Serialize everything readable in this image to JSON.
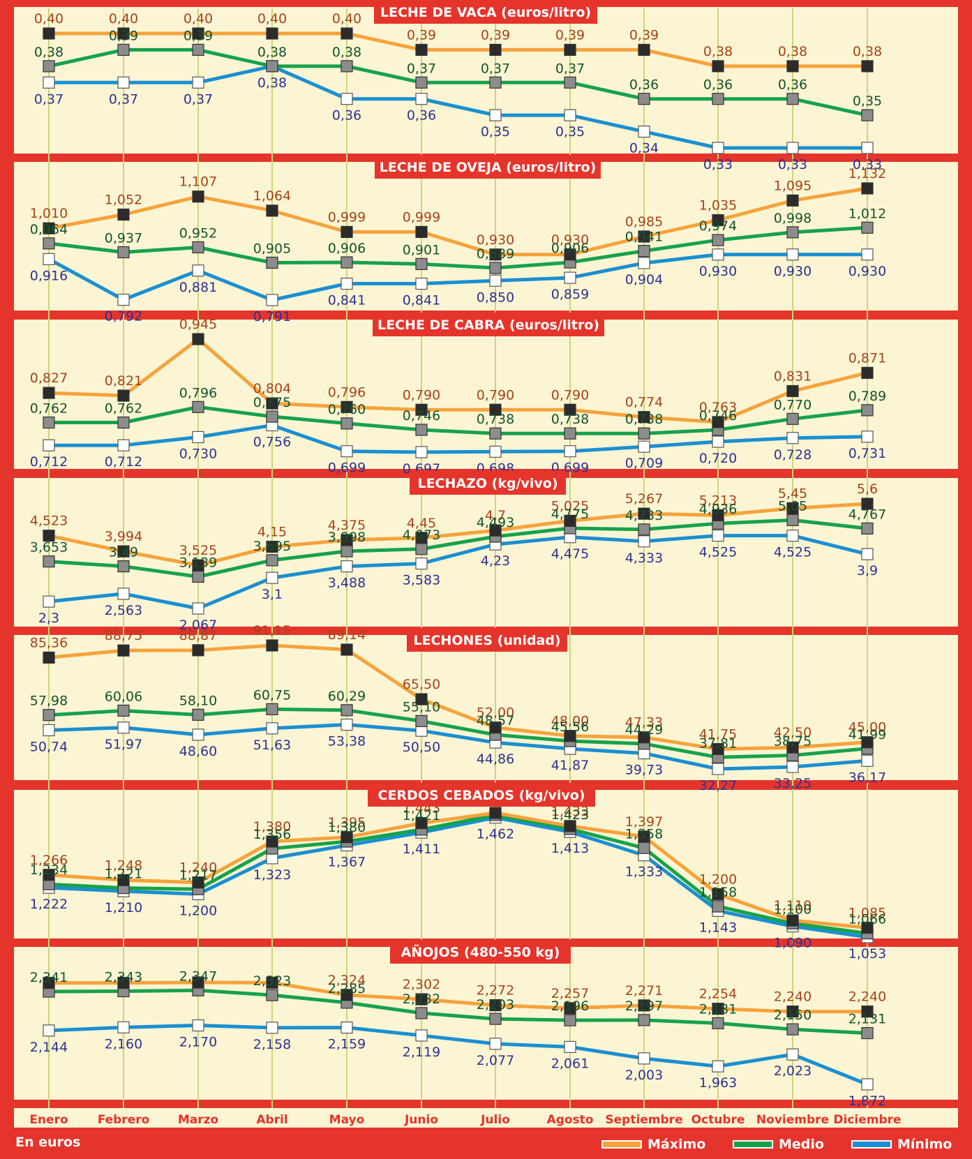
{
  "colors": {
    "background": "#e5342b",
    "panel": "#fbf5d3",
    "guide": "#c9d77a",
    "max": "#f6a33c",
    "mid": "#17a24b",
    "min": "#1b8fd1",
    "max_label": "#a8421c",
    "mid_label": "#14532d",
    "min_label": "#2e3192"
  },
  "months": [
    "Enero",
    "Febrero",
    "Marzo",
    "Abril",
    "Mayo",
    "Junio",
    "Julio",
    "Agosto",
    "Septiembre",
    "Octubre",
    "Noviembre",
    "Diciembre"
  ],
  "footer": {
    "unit_note": "En euros"
  },
  "legend": [
    {
      "label": "Máximo",
      "color": "#f6a33c"
    },
    {
      "label": "Medio",
      "color": "#17a24b"
    },
    {
      "label": "Mínimo",
      "color": "#1b8fd1"
    }
  ],
  "chart_data": [
    {
      "type": "line",
      "title": "LECHE DE VACA (euros/litro)",
      "categories": [
        "Enero",
        "Febrero",
        "Marzo",
        "Abril",
        "Mayo",
        "Junio",
        "Julio",
        "Agosto",
        "Septiembre",
        "Octubre",
        "Noviembre",
        "Diciembre"
      ],
      "series": [
        {
          "name": "Máximo",
          "values": [
            0.4,
            0.4,
            0.4,
            0.4,
            0.4,
            0.39,
            0.39,
            0.39,
            0.39,
            0.38,
            0.38,
            0.38
          ],
          "labels": [
            "0,40",
            "0,40",
            "0,40",
            "0,40",
            "0,40",
            "0,39",
            "0,39",
            "0,39",
            "0,39",
            "0,38",
            "0,38",
            "0,38"
          ]
        },
        {
          "name": "Medio",
          "values": [
            0.38,
            0.39,
            0.39,
            0.38,
            0.38,
            0.37,
            0.37,
            0.37,
            0.36,
            0.36,
            0.36,
            0.35
          ],
          "labels": [
            "0,38",
            "0,39",
            "0,39",
            "0,38",
            "0,38",
            "0,37",
            "0,37",
            "0,37",
            "0,36",
            "0,36",
            "0,36",
            "0,35"
          ]
        },
        {
          "name": "Mínimo",
          "values": [
            0.37,
            0.37,
            0.37,
            0.38,
            0.36,
            0.36,
            0.35,
            0.35,
            0.34,
            0.33,
            0.33,
            0.33
          ],
          "labels": [
            "0,37",
            "0,37",
            "0,37",
            "0,38",
            "0,36",
            "0,36",
            "0,35",
            "0,35",
            "0,34",
            "0,33",
            "0,33",
            "0,33"
          ]
        }
      ]
    },
    {
      "type": "line",
      "title": "LECHE DE OVEJA (euros/litro)",
      "categories": [
        "Enero",
        "Febrero",
        "Marzo",
        "Abril",
        "Mayo",
        "Junio",
        "Julio",
        "Agosto",
        "Septiembre",
        "Octubre",
        "Noviembre",
        "Diciembre"
      ],
      "series": [
        {
          "name": "Máximo",
          "values": [
            1.01,
            1.052,
            1.107,
            1.064,
            0.999,
            0.999,
            0.93,
            0.93,
            0.985,
            1.035,
            1.095,
            1.132
          ],
          "labels": [
            "1,010",
            "1,052",
            "1,107",
            "1,064",
            "0,999",
            "0,999",
            "0,930",
            "0,930",
            "0,985",
            "1,035",
            "1,095",
            "1,132"
          ]
        },
        {
          "name": "Medio",
          "values": [
            0.964,
            0.937,
            0.952,
            0.905,
            0.906,
            0.901,
            0.889,
            0.906,
            0.941,
            0.974,
            0.998,
            1.012
          ],
          "labels": [
            "0,964",
            "0,937",
            "0,952",
            "0,905",
            "0,906",
            "0,901",
            "0,889",
            "0,906",
            "0,941",
            "0,974",
            "0,998",
            "1,012"
          ]
        },
        {
          "name": "Mínimo",
          "values": [
            0.916,
            0.792,
            0.881,
            0.791,
            0.841,
            0.841,
            0.85,
            0.859,
            0.904,
            0.93,
            0.93,
            0.93
          ],
          "labels": [
            "0,916",
            "0,792",
            "0,881",
            "0,791",
            "0,841",
            "0,841",
            "0,850",
            "0,859",
            "0,904",
            "0,930",
            "0,930",
            "0,930"
          ]
        }
      ]
    },
    {
      "type": "line",
      "title": "LECHE DE CABRA (euros/litro)",
      "categories": [
        "Enero",
        "Febrero",
        "Marzo",
        "Abril",
        "Mayo",
        "Junio",
        "Julio",
        "Agosto",
        "Septiembre",
        "Octubre",
        "Noviembre",
        "Diciembre"
      ],
      "series": [
        {
          "name": "Máximo",
          "values": [
            0.827,
            0.821,
            0.945,
            0.804,
            0.796,
            0.79,
            0.79,
            0.79,
            0.774,
            0.763,
            0.831,
            0.871
          ],
          "labels": [
            "0,827",
            "0,821",
            "0,945",
            "0,804",
            "0,796",
            "0,790",
            "0,790",
            "0,790",
            "0,774",
            "0,763",
            "0,831",
            "0,871"
          ]
        },
        {
          "name": "Medio",
          "values": [
            0.762,
            0.762,
            0.796,
            0.775,
            0.76,
            0.746,
            0.738,
            0.738,
            0.738,
            0.746,
            0.77,
            0.789
          ],
          "labels": [
            "0,762",
            "0,762",
            "0,796",
            "0,775",
            "0,760",
            "0,746",
            "0,738",
            "0,738",
            "0,738",
            "0,746",
            "0,770",
            "0,789"
          ]
        },
        {
          "name": "Mínimo",
          "values": [
            0.712,
            0.712,
            0.73,
            0.756,
            0.699,
            0.697,
            0.698,
            0.699,
            0.709,
            0.72,
            0.728,
            0.731
          ],
          "labels": [
            "0,712",
            "0,712",
            "0,730",
            "0,756",
            "0,699",
            "0,697",
            "0,698",
            "0,699",
            "0,709",
            "0,720",
            "0,728",
            "0,731"
          ]
        }
      ]
    },
    {
      "type": "line",
      "title": "LECHAZO (kg/vivo)",
      "categories": [
        "Enero",
        "Febrero",
        "Marzo",
        "Abril",
        "Mayo",
        "Junio",
        "Julio",
        "Agosto",
        "Septiembre",
        "Octubre",
        "Noviembre",
        "Diciembre"
      ],
      "series": [
        {
          "name": "Máximo",
          "values": [
            4.523,
            3.994,
            3.525,
            4.15,
            4.375,
            4.45,
            4.7,
            5.025,
            5.267,
            5.213,
            5.45,
            5.6
          ],
          "labels": [
            "4,523",
            "3,994",
            "3,525",
            "4,15",
            "4,375",
            "4,45",
            "4,7",
            "5,025",
            "5,267",
            "5,213",
            "5,45",
            "5,6"
          ]
        },
        {
          "name": "Medio",
          "values": [
            3.653,
            3.49,
            3.139,
            3.695,
            3.998,
            4.073,
            4.493,
            4.775,
            4.733,
            4.936,
            5.05,
            4.767
          ],
          "labels": [
            "3,653",
            "3,49",
            "3,139",
            "3,695",
            "3,998",
            "4,073",
            "4,493",
            "4,775",
            "4,733",
            "4,936",
            "5,05",
            "4,767"
          ]
        },
        {
          "name": "Mínimo",
          "values": [
            2.3,
            2.563,
            2.067,
            3.1,
            3.488,
            3.583,
            4.23,
            4.475,
            4.333,
            4.525,
            4.525,
            3.9
          ],
          "labels": [
            "2,3",
            "2,563",
            "2,067",
            "3,1",
            "3,488",
            "3,583",
            "4,23",
            "4,475",
            "4,333",
            "4,525",
            "4,525",
            "3,9"
          ]
        }
      ]
    },
    {
      "type": "line",
      "title": "LECHONES (unidad)",
      "categories": [
        "Enero",
        "Febrero",
        "Marzo",
        "Abril",
        "Mayo",
        "Junio",
        "Julio",
        "Agosto",
        "Septiembre",
        "Octubre",
        "Noviembre",
        "Diciembre"
      ],
      "series": [
        {
          "name": "Máximo",
          "values": [
            85.36,
            88.75,
            88.87,
            91.15,
            89.14,
            65.5,
            52.0,
            48.0,
            47.33,
            41.75,
            42.5,
            45.0
          ],
          "labels": [
            "85,36",
            "88,75",
            "88,87",
            "91,15",
            "89,14",
            "65,50",
            "52,00",
            "48,00",
            "47,33",
            "41,75",
            "42,50",
            "45,00"
          ]
        },
        {
          "name": "Medio",
          "values": [
            57.98,
            60.06,
            58.1,
            60.75,
            60.29,
            55.1,
            48.57,
            45.56,
            44.29,
            37.81,
            38.75,
            41.99
          ],
          "labels": [
            "57,98",
            "60,06",
            "58,10",
            "60,75",
            "60,29",
            "55,10",
            "48,57",
            "45,56",
            "44,29",
            "37,81",
            "38,75",
            "41,99"
          ]
        },
        {
          "name": "Mínimo",
          "values": [
            50.74,
            51.97,
            48.6,
            51.63,
            53.38,
            50.5,
            44.86,
            41.87,
            39.73,
            32.27,
            33.25,
            36.17
          ],
          "labels": [
            "50,74",
            "51,97",
            "48,60",
            "51,63",
            "53,38",
            "50,50",
            "44,86",
            "41,87",
            "39,73",
            "32,27",
            "33,25",
            "36,17"
          ]
        }
      ]
    },
    {
      "type": "line",
      "title": "CERDOS CEBADOS (kg/vivo)",
      "categories": [
        "Enero",
        "Febrero",
        "Marzo",
        "Abril",
        "Mayo",
        "Junio",
        "Julio",
        "Agosto",
        "Septiembre",
        "Octubre",
        "Noviembre",
        "Diciembre"
      ],
      "series": [
        {
          "name": "Máximo",
          "values": [
            1.266,
            1.248,
            1.24,
            1.38,
            1.395,
            1.443,
            1.478,
            1.433,
            1.397,
            1.2,
            1.11,
            1.085
          ],
          "labels": [
            "1,266",
            "1,248",
            "1,240",
            "1,380",
            "1,395",
            "1,443",
            "1,478",
            "1,433",
            "1,397",
            "1,200",
            "1,110",
            "1,085"
          ]
        },
        {
          "name": "Medio",
          "values": [
            1.234,
            1.221,
            1.217,
            1.356,
            1.38,
            1.421,
            1.471,
            1.423,
            1.358,
            1.158,
            1.1,
            1.066
          ],
          "labels": [
            "1,234",
            "1,221",
            "1,217",
            "1,356",
            "1,380",
            "1,421",
            "1,471",
            "1,423",
            "1,358",
            "1,158",
            "1,100",
            "1,066"
          ]
        },
        {
          "name": "Mínimo",
          "values": [
            1.222,
            1.21,
            1.2,
            1.323,
            1.367,
            1.411,
            1.462,
            1.413,
            1.333,
            1.143,
            1.09,
            1.053
          ],
          "labels": [
            "1,222",
            "1,210",
            "1,200",
            "1,323",
            "1,367",
            "1,411",
            "1,462",
            "1,413",
            "1,333",
            "1,143",
            "1,090",
            "1,053"
          ]
        }
      ]
    },
    {
      "type": "line",
      "title": "AÑOJOS (480-550 kg)",
      "categories": [
        "Enero",
        "Febrero",
        "Marzo",
        "Abril",
        "Mayo",
        "Junio",
        "Julio",
        "Agosto",
        "Septiembre",
        "Octubre",
        "Noviembre",
        "Diciembre"
      ],
      "series": [
        {
          "name": "Máximo",
          "values": [
            2.385,
            2.385,
            2.387,
            2.386,
            2.324,
            2.302,
            2.272,
            2.257,
            2.271,
            2.254,
            2.24,
            2.24
          ],
          "labels": [
            "",
            "",
            "",
            "",
            "2,324",
            "2,302",
            "2,272",
            "2,257",
            "2,271",
            "2,254",
            "2,240",
            "2,240"
          ]
        },
        {
          "name": "Medio",
          "values": [
            2.341,
            2.343,
            2.347,
            2.323,
            2.285,
            2.232,
            2.203,
            2.196,
            2.197,
            2.181,
            2.15,
            2.131
          ],
          "labels": [
            "2,341",
            "2,343",
            "2,347",
            "2,323",
            "2,285",
            "2,232",
            "2,203",
            "2,196",
            "2,197",
            "2,181",
            "2,150",
            "2,131"
          ]
        },
        {
          "name": "Mínimo",
          "values": [
            2.144,
            2.16,
            2.17,
            2.158,
            2.159,
            2.119,
            2.077,
            2.061,
            2.003,
            1.963,
            2.023,
            1.872
          ],
          "labels": [
            "2,144",
            "2,160",
            "2,170",
            "2,158",
            "2,159",
            "2,119",
            "2,077",
            "2,061",
            "2,003",
            "1,963",
            "2,023",
            "1,872"
          ]
        }
      ]
    }
  ]
}
